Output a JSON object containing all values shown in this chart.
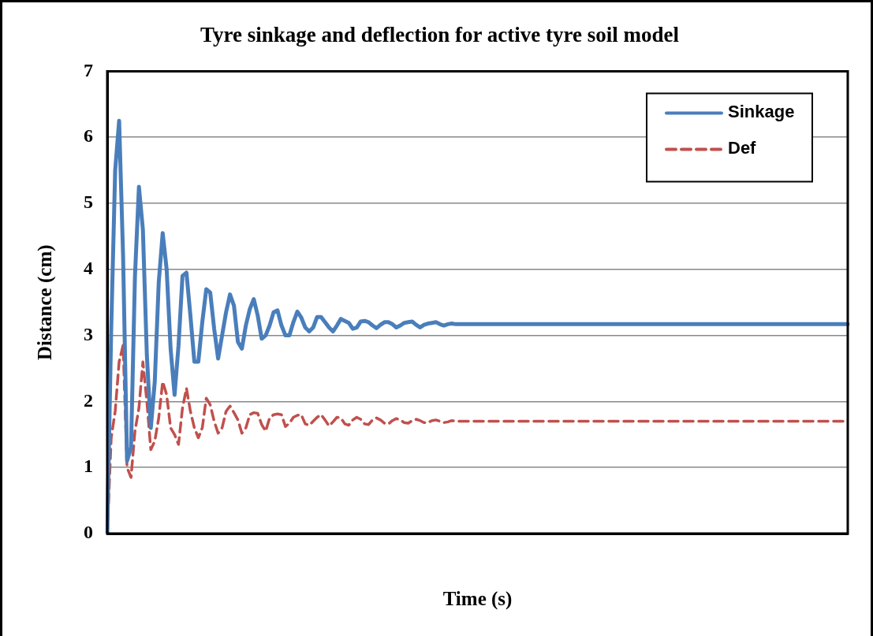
{
  "chart_data": {
    "type": "line",
    "title": "Tyre sinkage and deflection for active tyre soil model",
    "xlabel": "Time (s)",
    "ylabel": "Distance (cm)",
    "categories": [
      null,
      null,
      null,
      null,
      null,
      null,
      null,
      null,
      null,
      null,
      null,
      null,
      null,
      null,
      null,
      null,
      null,
      null,
      null,
      null,
      null,
      null,
      null,
      null,
      null,
      null,
      null,
      null,
      null,
      null,
      null,
      null,
      null,
      null,
      null,
      null,
      null,
      null,
      null,
      null,
      null,
      null,
      null,
      null,
      null,
      null,
      null,
      null,
      null,
      null,
      null,
      null,
      null,
      null,
      null,
      null,
      null,
      null,
      null,
      null,
      null,
      null,
      null,
      null,
      null,
      null,
      null,
      null,
      null,
      null,
      null,
      null,
      null,
      null,
      null,
      null,
      null,
      null,
      null,
      null,
      null,
      null,
      null,
      null,
      null,
      null,
      null,
      null,
      null,
      null,
      null,
      null,
      null,
      null,
      null,
      null,
      null,
      null,
      null,
      null,
      null,
      null,
      null,
      null,
      null,
      null,
      null,
      null,
      null,
      null,
      null,
      null,
      null,
      null,
      null,
      null,
      null,
      null,
      null,
      null,
      null,
      null,
      null,
      null,
      null,
      null,
      null,
      null,
      null,
      null,
      null,
      null,
      null,
      null,
      null,
      null,
      null,
      null,
      null,
      null,
      null,
      null,
      null,
      null,
      null,
      null,
      null,
      null,
      null,
      null,
      null,
      null,
      null,
      null,
      null,
      null,
      null,
      null,
      null,
      null,
      null,
      null,
      null,
      null,
      null,
      null,
      null,
      null,
      null,
      null,
      null,
      null,
      null,
      null,
      null,
      null,
      null,
      null,
      null,
      null,
      null,
      null,
      null,
      null,
      null,
      null,
      null,
      null
    ],
    "series": [
      {
        "name": "Sinkage",
        "color": "#4a7ebb",
        "line_style": "solid",
        "values": [
          0,
          3.1,
          5.5,
          6.25,
          4.2,
          1.1,
          1.3,
          3.9,
          5.25,
          4.6,
          2.7,
          1.6,
          2.3,
          3.8,
          4.55,
          4.0,
          2.8,
          2.1,
          2.85,
          3.9,
          3.95,
          3.3,
          2.6,
          2.6,
          3.2,
          3.7,
          3.65,
          3.1,
          2.65,
          3.0,
          3.35,
          3.62,
          3.45,
          2.9,
          2.8,
          3.15,
          3.4,
          3.55,
          3.3,
          2.95,
          3.0,
          3.15,
          3.35,
          3.38,
          3.15,
          3.0,
          3.0,
          3.2,
          3.36,
          3.27,
          3.12,
          3.06,
          3.12,
          3.28,
          3.28,
          3.2,
          3.12,
          3.06,
          3.15,
          3.25,
          3.22,
          3.19,
          3.1,
          3.12,
          3.21,
          3.22,
          3.2,
          3.15,
          3.11,
          3.16,
          3.2,
          3.2,
          3.17,
          3.12,
          3.15,
          3.19,
          3.2,
          3.21,
          3.16,
          3.12,
          3.16,
          3.18,
          3.19,
          3.2,
          3.17,
          3.15,
          3.17,
          3.18,
          3.17,
          3.17,
          3.17,
          3.17,
          3.17,
          3.17,
          3.17,
          3.17,
          3.17,
          3.17,
          3.17,
          3.17,
          3.17,
          3.17,
          3.17,
          3.17,
          3.17,
          3.17,
          3.17,
          3.17,
          3.17,
          3.17,
          3.17,
          3.17,
          3.17,
          3.17,
          3.17,
          3.17,
          3.17,
          3.17,
          3.17,
          3.17,
          3.17,
          3.17,
          3.17,
          3.17,
          3.17,
          3.17,
          3.17,
          3.17,
          3.17,
          3.17,
          3.17,
          3.17,
          3.17,
          3.17,
          3.17,
          3.17,
          3.17,
          3.17,
          3.17,
          3.17,
          3.17,
          3.17,
          3.17,
          3.17,
          3.17,
          3.17,
          3.17,
          3.17,
          3.17,
          3.17,
          3.17,
          3.17,
          3.17,
          3.17,
          3.17,
          3.17,
          3.17,
          3.17,
          3.17,
          3.17,
          3.17,
          3.17,
          3.17,
          3.17,
          3.17,
          3.17,
          3.17,
          3.17,
          3.17,
          3.17,
          3.17,
          3.17,
          3.17,
          3.17,
          3.17,
          3.17,
          3.17,
          3.17,
          3.17,
          3.17,
          3.17,
          3.17,
          3.17,
          3.17,
          3.17,
          3.17,
          3.17,
          3.17
        ]
      },
      {
        "name": "Def",
        "color": "#c0504d",
        "line_style": "dashed",
        "values": [
          0,
          1.45,
          1.85,
          2.6,
          2.85,
          1.0,
          0.85,
          1.55,
          1.9,
          2.6,
          2.0,
          1.27,
          1.4,
          1.75,
          2.3,
          2.1,
          1.6,
          1.5,
          1.35,
          1.9,
          2.2,
          1.85,
          1.6,
          1.45,
          1.6,
          2.05,
          1.95,
          1.7,
          1.52,
          1.6,
          1.85,
          1.93,
          1.83,
          1.72,
          1.52,
          1.6,
          1.8,
          1.83,
          1.82,
          1.65,
          1.55,
          1.75,
          1.8,
          1.81,
          1.8,
          1.62,
          1.67,
          1.76,
          1.79,
          1.8,
          1.66,
          1.64,
          1.7,
          1.76,
          1.8,
          1.72,
          1.63,
          1.69,
          1.76,
          1.75,
          1.66,
          1.64,
          1.72,
          1.76,
          1.73,
          1.66,
          1.65,
          1.72,
          1.75,
          1.72,
          1.67,
          1.66,
          1.71,
          1.74,
          1.72,
          1.68,
          1.67,
          1.71,
          1.73,
          1.71,
          1.68,
          1.68,
          1.71,
          1.72,
          1.7,
          1.68,
          1.69,
          1.71,
          1.7,
          1.7,
          1.7,
          1.7,
          1.7,
          1.7,
          1.7,
          1.7,
          1.7,
          1.7,
          1.7,
          1.7,
          1.7,
          1.7,
          1.7,
          1.7,
          1.7,
          1.7,
          1.7,
          1.7,
          1.7,
          1.7,
          1.7,
          1.7,
          1.7,
          1.7,
          1.7,
          1.7,
          1.7,
          1.7,
          1.7,
          1.7,
          1.7,
          1.7,
          1.7,
          1.7,
          1.7,
          1.7,
          1.7,
          1.7,
          1.7,
          1.7,
          1.7,
          1.7,
          1.7,
          1.7,
          1.7,
          1.7,
          1.7,
          1.7,
          1.7,
          1.7,
          1.7,
          1.7,
          1.7,
          1.7,
          1.7,
          1.7,
          1.7,
          1.7,
          1.7,
          1.7,
          1.7,
          1.7,
          1.7,
          1.7,
          1.7,
          1.7,
          1.7,
          1.7,
          1.7,
          1.7,
          1.7,
          1.7,
          1.7,
          1.7,
          1.7,
          1.7,
          1.7,
          1.7,
          1.7,
          1.7,
          1.7,
          1.7,
          1.7,
          1.7,
          1.7,
          1.7,
          1.7,
          1.7,
          1.7,
          1.7,
          1.7,
          1.7,
          1.7,
          1.7,
          1.7,
          1.7,
          1.7,
          1.7
        ]
      }
    ],
    "ylim": [
      0,
      7
    ],
    "yticks": [
      0,
      1,
      2,
      3,
      4,
      5,
      6,
      7
    ],
    "grid": "y",
    "legend": "top right",
    "tick_labels": "y",
    "marker": "none"
  }
}
